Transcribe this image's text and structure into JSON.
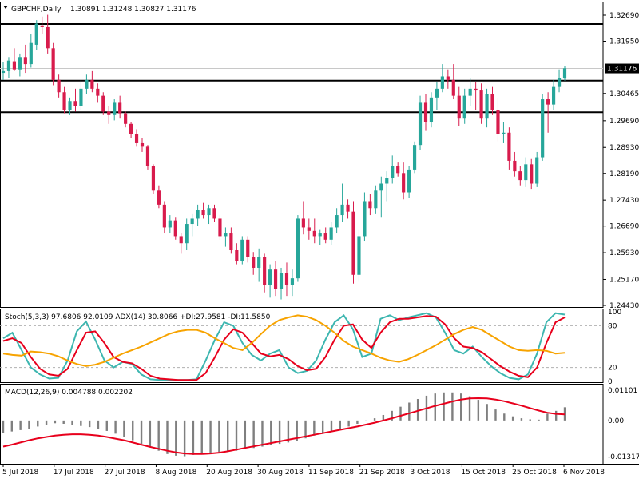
{
  "header": {
    "symbol": "GBPCHF,Daily",
    "ohlc": "1.30891 1.31248 1.30827 1.31176"
  },
  "stoch_header": "Stoch(5,3,3) 97.6806 92.0109  ADX(14) 30.8066 +DI:27.9581 -DI:11.5850",
  "macd_header": "MACD(12,26,9) 0.004788 0.002202",
  "colors": {
    "bull": "#26a69a",
    "bear": "#d81b4c",
    "stoch_main": "#3db6b0",
    "stoch_signal": "#e8001c",
    "adx": "#f7a300",
    "macd_hist": "#7f7f7f",
    "macd_signal": "#e8001c"
  },
  "chart_data": [
    {
      "type": "candlestick",
      "title": "GBPCHF,Daily",
      "x": [
        "5 Jul 2018",
        "17 Jul 2018",
        "27 Jul 2018",
        "8 Aug 2018",
        "20 Aug 2018",
        "30 Aug 2018",
        "11 Sep 2018",
        "21 Sep 2018",
        "3 Oct 2018",
        "15 Oct 2018",
        "25 Oct 2018",
        "6 Nov 2018"
      ],
      "y_ticks": [
        "1.32690",
        "1.31950",
        "1.30465",
        "1.29690",
        "1.28930",
        "1.28190",
        "1.27430",
        "1.26690",
        "1.25930",
        "1.25170",
        "1.24430"
      ],
      "current_price": "1.31176",
      "ylim": [
        1.2443,
        1.3269
      ],
      "horizontal_levels": [
        1.3244,
        1.3083,
        1.2993
      ],
      "candles": [
        {
          "o": 1.3105,
          "h": 1.3135,
          "l": 1.3085,
          "c": 1.311
        },
        {
          "o": 1.311,
          "h": 1.315,
          "l": 1.309,
          "c": 1.314
        },
        {
          "o": 1.3138,
          "h": 1.3175,
          "l": 1.311,
          "c": 1.3115
        },
        {
          "o": 1.3115,
          "h": 1.316,
          "l": 1.3095,
          "c": 1.315
        },
        {
          "o": 1.315,
          "h": 1.3185,
          "l": 1.3105,
          "c": 1.313
        },
        {
          "o": 1.313,
          "h": 1.3215,
          "l": 1.312,
          "c": 1.319
        },
        {
          "o": 1.3185,
          "h": 1.3255,
          "l": 1.317,
          "c": 1.3245
        },
        {
          "o": 1.324,
          "h": 1.3265,
          "l": 1.3215,
          "c": 1.3235
        },
        {
          "o": 1.3235,
          "h": 1.327,
          "l": 1.316,
          "c": 1.3175
        },
        {
          "o": 1.3175,
          "h": 1.319,
          "l": 1.307,
          "c": 1.3085
        },
        {
          "o": 1.3085,
          "h": 1.31,
          "l": 1.3035,
          "c": 1.305
        },
        {
          "o": 1.305,
          "h": 1.3065,
          "l": 1.299,
          "c": 1.3
        },
        {
          "o": 1.3,
          "h": 1.3035,
          "l": 1.2985,
          "c": 1.3025
        },
        {
          "o": 1.3025,
          "h": 1.306,
          "l": 1.2995,
          "c": 1.301
        },
        {
          "o": 1.301,
          "h": 1.3085,
          "l": 1.3,
          "c": 1.306
        },
        {
          "o": 1.306,
          "h": 1.31,
          "l": 1.3045,
          "c": 1.3085
        },
        {
          "o": 1.3085,
          "h": 1.311,
          "l": 1.305,
          "c": 1.306
        },
        {
          "o": 1.306,
          "h": 1.3075,
          "l": 1.302,
          "c": 1.304
        },
        {
          "o": 1.304,
          "h": 1.305,
          "l": 1.2985,
          "c": 1.2995
        },
        {
          "o": 1.2995,
          "h": 1.301,
          "l": 1.296,
          "c": 1.2985
        },
        {
          "o": 1.2985,
          "h": 1.303,
          "l": 1.297,
          "c": 1.302
        },
        {
          "o": 1.302,
          "h": 1.304,
          "l": 1.2975,
          "c": 1.299
        },
        {
          "o": 1.299,
          "h": 1.2995,
          "l": 1.295,
          "c": 1.296
        },
        {
          "o": 1.296,
          "h": 1.2965,
          "l": 1.292,
          "c": 1.293
        },
        {
          "o": 1.293,
          "h": 1.2945,
          "l": 1.2895,
          "c": 1.2905
        },
        {
          "o": 1.2905,
          "h": 1.292,
          "l": 1.288,
          "c": 1.2895
        },
        {
          "o": 1.2895,
          "h": 1.29,
          "l": 1.283,
          "c": 1.284
        },
        {
          "o": 1.284,
          "h": 1.2845,
          "l": 1.276,
          "c": 1.277
        },
        {
          "o": 1.277,
          "h": 1.2785,
          "l": 1.272,
          "c": 1.273
        },
        {
          "o": 1.273,
          "h": 1.274,
          "l": 1.265,
          "c": 1.2665
        },
        {
          "o": 1.2665,
          "h": 1.27,
          "l": 1.265,
          "c": 1.2685
        },
        {
          "o": 1.2685,
          "h": 1.2695,
          "l": 1.263,
          "c": 1.264
        },
        {
          "o": 1.264,
          "h": 1.265,
          "l": 1.259,
          "c": 1.262
        },
        {
          "o": 1.262,
          "h": 1.269,
          "l": 1.26,
          "c": 1.2675
        },
        {
          "o": 1.2675,
          "h": 1.2705,
          "l": 1.264,
          "c": 1.269
        },
        {
          "o": 1.269,
          "h": 1.273,
          "l": 1.267,
          "c": 1.2715
        },
        {
          "o": 1.2715,
          "h": 1.2735,
          "l": 1.269,
          "c": 1.27
        },
        {
          "o": 1.27,
          "h": 1.273,
          "l": 1.2675,
          "c": 1.272
        },
        {
          "o": 1.272,
          "h": 1.273,
          "l": 1.268,
          "c": 1.269
        },
        {
          "o": 1.269,
          "h": 1.27,
          "l": 1.263,
          "c": 1.264
        },
        {
          "o": 1.264,
          "h": 1.2665,
          "l": 1.261,
          "c": 1.265
        },
        {
          "o": 1.265,
          "h": 1.2665,
          "l": 1.259,
          "c": 1.26
        },
        {
          "o": 1.26,
          "h": 1.262,
          "l": 1.256,
          "c": 1.257
        },
        {
          "o": 1.257,
          "h": 1.264,
          "l": 1.256,
          "c": 1.263
        },
        {
          "o": 1.263,
          "h": 1.264,
          "l": 1.2565,
          "c": 1.258
        },
        {
          "o": 1.258,
          "h": 1.2595,
          "l": 1.253,
          "c": 1.255
        },
        {
          "o": 1.255,
          "h": 1.2605,
          "l": 1.251,
          "c": 1.258
        },
        {
          "o": 1.258,
          "h": 1.259,
          "l": 1.248,
          "c": 1.25
        },
        {
          "o": 1.25,
          "h": 1.256,
          "l": 1.2465,
          "c": 1.2545
        },
        {
          "o": 1.2545,
          "h": 1.257,
          "l": 1.247,
          "c": 1.249
        },
        {
          "o": 1.249,
          "h": 1.255,
          "l": 1.246,
          "c": 1.2535
        },
        {
          "o": 1.2535,
          "h": 1.2565,
          "l": 1.247,
          "c": 1.25
        },
        {
          "o": 1.25,
          "h": 1.2545,
          "l": 1.247,
          "c": 1.252
        },
        {
          "o": 1.252,
          "h": 1.27,
          "l": 1.251,
          "c": 1.269
        },
        {
          "o": 1.269,
          "h": 1.274,
          "l": 1.2645,
          "c": 1.2665
        },
        {
          "o": 1.2665,
          "h": 1.269,
          "l": 1.263,
          "c": 1.2655
        },
        {
          "o": 1.2655,
          "h": 1.269,
          "l": 1.262,
          "c": 1.264
        },
        {
          "o": 1.264,
          "h": 1.266,
          "l": 1.2615,
          "c": 1.265
        },
        {
          "o": 1.265,
          "h": 1.2665,
          "l": 1.262,
          "c": 1.263
        },
        {
          "o": 1.263,
          "h": 1.268,
          "l": 1.2615,
          "c": 1.2665
        },
        {
          "o": 1.2665,
          "h": 1.272,
          "l": 1.265,
          "c": 1.27
        },
        {
          "o": 1.27,
          "h": 1.279,
          "l": 1.268,
          "c": 1.273
        },
        {
          "o": 1.273,
          "h": 1.2745,
          "l": 1.269,
          "c": 1.271
        },
        {
          "o": 1.271,
          "h": 1.274,
          "l": 1.2505,
          "c": 1.253
        },
        {
          "o": 1.253,
          "h": 1.266,
          "l": 1.251,
          "c": 1.264
        },
        {
          "o": 1.264,
          "h": 1.2765,
          "l": 1.2625,
          "c": 1.274
        },
        {
          "o": 1.274,
          "h": 1.276,
          "l": 1.27,
          "c": 1.272
        },
        {
          "o": 1.272,
          "h": 1.2785,
          "l": 1.2705,
          "c": 1.277
        },
        {
          "o": 1.277,
          "h": 1.281,
          "l": 1.2695,
          "c": 1.279
        },
        {
          "o": 1.279,
          "h": 1.2825,
          "l": 1.274,
          "c": 1.2805
        },
        {
          "o": 1.2805,
          "h": 1.287,
          "l": 1.279,
          "c": 1.284
        },
        {
          "o": 1.284,
          "h": 1.285,
          "l": 1.281,
          "c": 1.282
        },
        {
          "o": 1.282,
          "h": 1.285,
          "l": 1.2745,
          "c": 1.2765
        },
        {
          "o": 1.2765,
          "h": 1.284,
          "l": 1.275,
          "c": 1.283
        },
        {
          "o": 1.283,
          "h": 1.291,
          "l": 1.282,
          "c": 1.29
        },
        {
          "o": 1.29,
          "h": 1.304,
          "l": 1.2885,
          "c": 1.302
        },
        {
          "o": 1.302,
          "h": 1.3045,
          "l": 1.294,
          "c": 1.2965
        },
        {
          "o": 1.2965,
          "h": 1.305,
          "l": 1.295,
          "c": 1.3035
        },
        {
          "o": 1.3035,
          "h": 1.308,
          "l": 1.3,
          "c": 1.306
        },
        {
          "o": 1.306,
          "h": 1.313,
          "l": 1.305,
          "c": 1.3095
        },
        {
          "o": 1.3095,
          "h": 1.3115,
          "l": 1.306,
          "c": 1.3085
        },
        {
          "o": 1.3085,
          "h": 1.313,
          "l": 1.303,
          "c": 1.304
        },
        {
          "o": 1.304,
          "h": 1.3065,
          "l": 1.2955,
          "c": 1.2975
        },
        {
          "o": 1.2975,
          "h": 1.306,
          "l": 1.296,
          "c": 1.304
        },
        {
          "o": 1.304,
          "h": 1.309,
          "l": 1.301,
          "c": 1.306
        },
        {
          "o": 1.306,
          "h": 1.308,
          "l": 1.3,
          "c": 1.3055
        },
        {
          "o": 1.3055,
          "h": 1.3075,
          "l": 1.296,
          "c": 1.2975
        },
        {
          "o": 1.2975,
          "h": 1.306,
          "l": 1.295,
          "c": 1.3045
        },
        {
          "o": 1.3045,
          "h": 1.3065,
          "l": 1.2985,
          "c": 1.3
        },
        {
          "o": 1.3,
          "h": 1.3035,
          "l": 1.291,
          "c": 1.293
        },
        {
          "o": 1.293,
          "h": 1.2965,
          "l": 1.2905,
          "c": 1.2935
        },
        {
          "o": 1.2935,
          "h": 1.295,
          "l": 1.283,
          "c": 1.2855
        },
        {
          "o": 1.2855,
          "h": 1.288,
          "l": 1.281,
          "c": 1.2825
        },
        {
          "o": 1.2825,
          "h": 1.284,
          "l": 1.2785,
          "c": 1.28
        },
        {
          "o": 1.28,
          "h": 1.2865,
          "l": 1.278,
          "c": 1.2845
        },
        {
          "o": 1.2845,
          "h": 1.286,
          "l": 1.2775,
          "c": 1.279
        },
        {
          "o": 1.279,
          "h": 1.288,
          "l": 1.278,
          "c": 1.2865
        },
        {
          "o": 1.2865,
          "h": 1.3045,
          "l": 1.2855,
          "c": 1.303
        },
        {
          "o": 1.303,
          "h": 1.305,
          "l": 1.2935,
          "c": 1.3015
        },
        {
          "o": 1.3015,
          "h": 1.3085,
          "l": 1.3,
          "c": 1.3065
        },
        {
          "o": 1.3065,
          "h": 1.3115,
          "l": 1.305,
          "c": 1.309
        },
        {
          "o": 1.3089,
          "h": 1.3125,
          "l": 1.3083,
          "c": 1.3118
        }
      ]
    },
    {
      "type": "line",
      "title": "Stoch(5,3,3) 97.6806 92.0109  ADX(14) 30.8066 +DI:27.9581 -DI:11.5850",
      "ylim": [
        0,
        100
      ],
      "y_ticks": [
        "100",
        "80",
        "20",
        "0"
      ],
      "series": [
        {
          "name": "Stoch main",
          "values": [
            62,
            70,
            45,
            20,
            10,
            4,
            5,
            30,
            72,
            86,
            60,
            30,
            20,
            28,
            25,
            10,
            3,
            2,
            2,
            2,
            2,
            3,
            30,
            60,
            85,
            80,
            55,
            38,
            30,
            40,
            45,
            20,
            12,
            15,
            30,
            60,
            85,
            95,
            75,
            35,
            40,
            90,
            95,
            88,
            92,
            95,
            98,
            92,
            70,
            45,
            40,
            50,
            35,
            22,
            12,
            5,
            3,
            10,
            40,
            85,
            98,
            96
          ]
        },
        {
          "name": "Stoch signal",
          "values": [
            58,
            62,
            55,
            35,
            18,
            10,
            8,
            18,
            45,
            70,
            72,
            55,
            35,
            28,
            26,
            18,
            8,
            4,
            3,
            2,
            2,
            2,
            12,
            35,
            60,
            75,
            70,
            55,
            40,
            36,
            38,
            32,
            22,
            16,
            18,
            35,
            60,
            80,
            82,
            60,
            48,
            70,
            85,
            90,
            90,
            92,
            94,
            93,
            82,
            62,
            50,
            48,
            42,
            32,
            22,
            14,
            8,
            6,
            20,
            55,
            85,
            92
          ]
        },
        {
          "name": "ADX",
          "values": [
            40,
            38,
            37,
            43,
            42,
            40,
            36,
            30,
            25,
            22,
            24,
            28,
            34,
            40,
            45,
            50,
            56,
            62,
            68,
            72,
            74,
            74,
            70,
            62,
            55,
            48,
            45,
            55,
            68,
            80,
            88,
            92,
            95,
            93,
            88,
            80,
            70,
            58,
            50,
            45,
            40,
            34,
            30,
            28,
            32,
            38,
            45,
            52,
            60,
            68,
            74,
            78,
            74,
            66,
            58,
            50,
            45,
            44,
            45,
            44,
            40,
            41
          ]
        }
      ]
    },
    {
      "type": "bar",
      "title": "MACD(12,26,9) 0.004788 0.002202",
      "ylim": [
        -0.01371,
        0.01101
      ],
      "y_ticks": [
        "0.01101",
        "0.00",
        "-0.013171"
      ],
      "series": [
        {
          "name": "MACD histogram",
          "values": [
            -0.0045,
            -0.004,
            -0.0035,
            -0.003,
            -0.0022,
            -0.0015,
            -0.001,
            -0.0012,
            -0.0016,
            -0.002,
            -0.0024,
            -0.003,
            -0.0038,
            -0.0048,
            -0.006,
            -0.0072,
            -0.0085,
            -0.0098,
            -0.011,
            -0.0122,
            -0.0128,
            -0.013,
            -0.0125,
            -0.012,
            -0.0118,
            -0.0115,
            -0.0112,
            -0.011,
            -0.0105,
            -0.01,
            -0.0095,
            -0.009,
            -0.0085,
            -0.008,
            -0.0075,
            -0.0065,
            -0.0055,
            -0.0048,
            -0.004,
            -0.0032,
            -0.0022,
            -0.0012,
            -0.0003,
            0.0008,
            0.002,
            0.0035,
            0.005,
            0.0065,
            0.0078,
            0.009,
            0.0098,
            0.0102,
            0.0102,
            0.0098,
            0.0088,
            0.0075,
            0.006,
            0.004,
            0.0025,
            0.0015,
            0.0008,
            0.0004,
            0.0003,
            0.0025,
            0.0035,
            0.0048
          ]
        },
        {
          "name": "MACD signal",
          "values": [
            -0.0095,
            -0.0088,
            -0.008,
            -0.0072,
            -0.0065,
            -0.006,
            -0.0055,
            -0.0052,
            -0.005,
            -0.005,
            -0.0052,
            -0.0055,
            -0.006,
            -0.0066,
            -0.0072,
            -0.008,
            -0.0088,
            -0.0096,
            -0.0103,
            -0.011,
            -0.0116,
            -0.012,
            -0.0122,
            -0.0122,
            -0.012,
            -0.0117,
            -0.0112,
            -0.0106,
            -0.01,
            -0.0094,
            -0.0088,
            -0.0082,
            -0.0076,
            -0.007,
            -0.0064,
            -0.0058,
            -0.0052,
            -0.0046,
            -0.004,
            -0.0034,
            -0.0028,
            -0.0022,
            -0.0015,
            -0.0008,
            0.0,
            0.0008,
            0.0017,
            0.0026,
            0.0035,
            0.0044,
            0.0053,
            0.0061,
            0.0069,
            0.0076,
            0.008,
            0.0081,
            0.008,
            0.0076,
            0.007,
            0.0062,
            0.0054,
            0.0045,
            0.0036,
            0.0028,
            0.0024,
            0.0022
          ]
        }
      ]
    }
  ]
}
